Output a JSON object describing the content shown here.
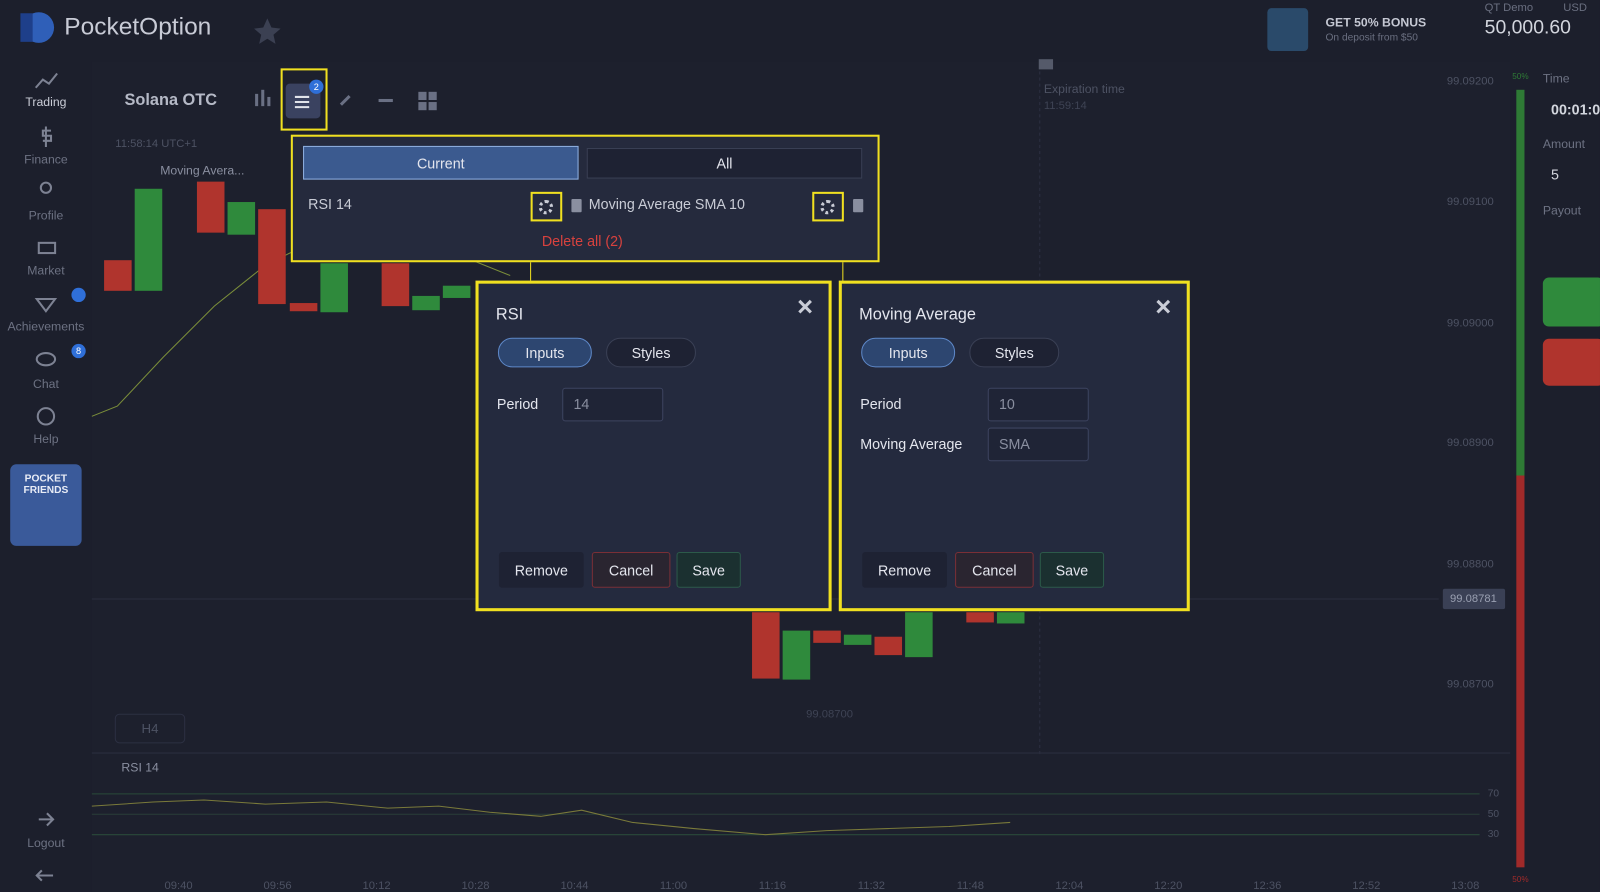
{
  "header": {
    "logo": "PocketOption",
    "bonus_title": "GET 50% BONUS",
    "bonus_subtitle": "On deposit from $50",
    "account_type": "QT Demo",
    "currency": "USD",
    "balance": "50,000.60"
  },
  "sidebar": {
    "items": [
      "Trading",
      "Finance",
      "Profile",
      "Market",
      "Achievements",
      "Chat",
      "Help"
    ],
    "chat_badge": "8",
    "promo": "POCKET FRIENDS",
    "logout": "Logout"
  },
  "toolbar": {
    "asset": "Solana OTC",
    "indicator_count": "2"
  },
  "chart": {
    "timestamp": "11:58:14 UTC+1",
    "indicator_legend": "Moving Avera...",
    "expiration_label": "Expiration time",
    "expiration_time": "11:59:14",
    "price_labels": [
      "99.09200",
      "99.09100",
      "99.09000",
      "99.08900",
      "99.08800",
      "99.08700"
    ],
    "current_price": "99.08781",
    "low_label": "99.08700",
    "timeframe": "H4",
    "rsi_label": "RSI 14",
    "rsi_levels": [
      "70",
      "50",
      "30"
    ],
    "time_labels": [
      "09:40",
      "09:56",
      "10:12",
      "10:28",
      "10:44",
      "11:00",
      "11:16",
      "11:32",
      "11:48",
      "12:04",
      "12:20",
      "12:36",
      "12:52",
      "13:08"
    ],
    "bar_top": "50%",
    "bar_bottom": "50%"
  },
  "trade_panel": {
    "time_label": "Time",
    "time_value": "00:01:0",
    "amount_label": "Amount",
    "amount_value": "5",
    "payout_label": "Payout"
  },
  "indicators_menu": {
    "tabs": [
      "Current",
      "All"
    ],
    "items": [
      "RSI 14",
      "Moving Average SMA 10"
    ],
    "delete_all": "Delete all (2)"
  },
  "dialogs": [
    {
      "title": "RSI",
      "tabs": [
        "Inputs",
        "Styles"
      ],
      "fields": [
        {
          "label": "Period",
          "value": "14"
        }
      ],
      "buttons": [
        "Remove",
        "Cancel",
        "Save"
      ]
    },
    {
      "title": "Moving Average",
      "tabs": [
        "Inputs",
        "Styles"
      ],
      "fields": [
        {
          "label": "Period",
          "value": "10"
        },
        {
          "label": "Moving Average",
          "value": "SMA"
        }
      ],
      "buttons": [
        "Remove",
        "Cancel",
        "Save"
      ]
    }
  ]
}
